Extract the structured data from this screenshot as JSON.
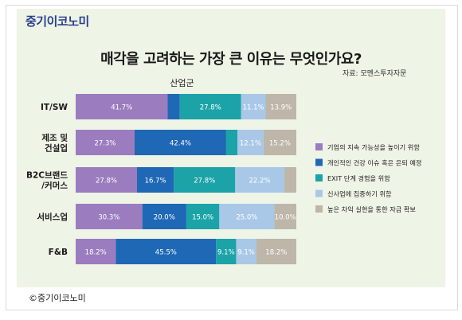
{
  "brand": "중기이코노미",
  "copyright": "©중기이코노미",
  "source": "자료: 모멘스투자자문",
  "colors": [
    "#9b7dbf",
    "#1f68b5",
    "#1ba3a8",
    "#a9c8e8",
    "#bdb6a9"
  ],
  "chart_data": {
    "type": "bar",
    "orientation": "horizontal",
    "stacked": true,
    "percent_stacked": true,
    "title": "매각을 고려하는 가장 큰 이유는 무엇인가요?",
    "xlabel": "산업군",
    "ylabel": "",
    "legend_position": "right",
    "categories": [
      "IT/SW",
      "제조 및\n건설업",
      "B2C브랜드\n/커머스",
      "서비스업",
      "F&B"
    ],
    "series": [
      {
        "name": "기업의 지속 가능성을 높이기 위함",
        "values": [
          41.7,
          27.3,
          27.8,
          30.3,
          18.2
        ],
        "labels": [
          "41.7%",
          "27.3%",
          "27.8%",
          "30.3%",
          "18.2%"
        ]
      },
      {
        "name": "개인적인 건강 이슈 혹은 은퇴 예정",
        "values": [
          5.5,
          42.4,
          16.7,
          20.0,
          45.5
        ],
        "labels": [
          "",
          "42.4%",
          "16.7%",
          "20.0%",
          "45.5%"
        ]
      },
      {
        "name": "EXIT 단계 경험을 위함",
        "values": [
          27.8,
          5.2,
          27.8,
          15.0,
          9.1
        ],
        "labels": [
          "27.8%",
          "",
          "27.8%",
          "15.0%",
          "9.1%"
        ]
      },
      {
        "name": "신사업에 집중하기 위함",
        "values": [
          11.1,
          12.1,
          22.2,
          25.0,
          9.1
        ],
        "labels": [
          "11.1%",
          "12.1%",
          "22.2%",
          "25.0%",
          "9.1%"
        ]
      },
      {
        "name": "높은 차익 실현을 통한 자금 확보",
        "values": [
          13.9,
          15.2,
          5.5,
          10.0,
          18.2
        ],
        "labels": [
          "13.9%",
          "15.2%",
          "",
          "10.0%",
          "18.2%"
        ]
      }
    ]
  }
}
